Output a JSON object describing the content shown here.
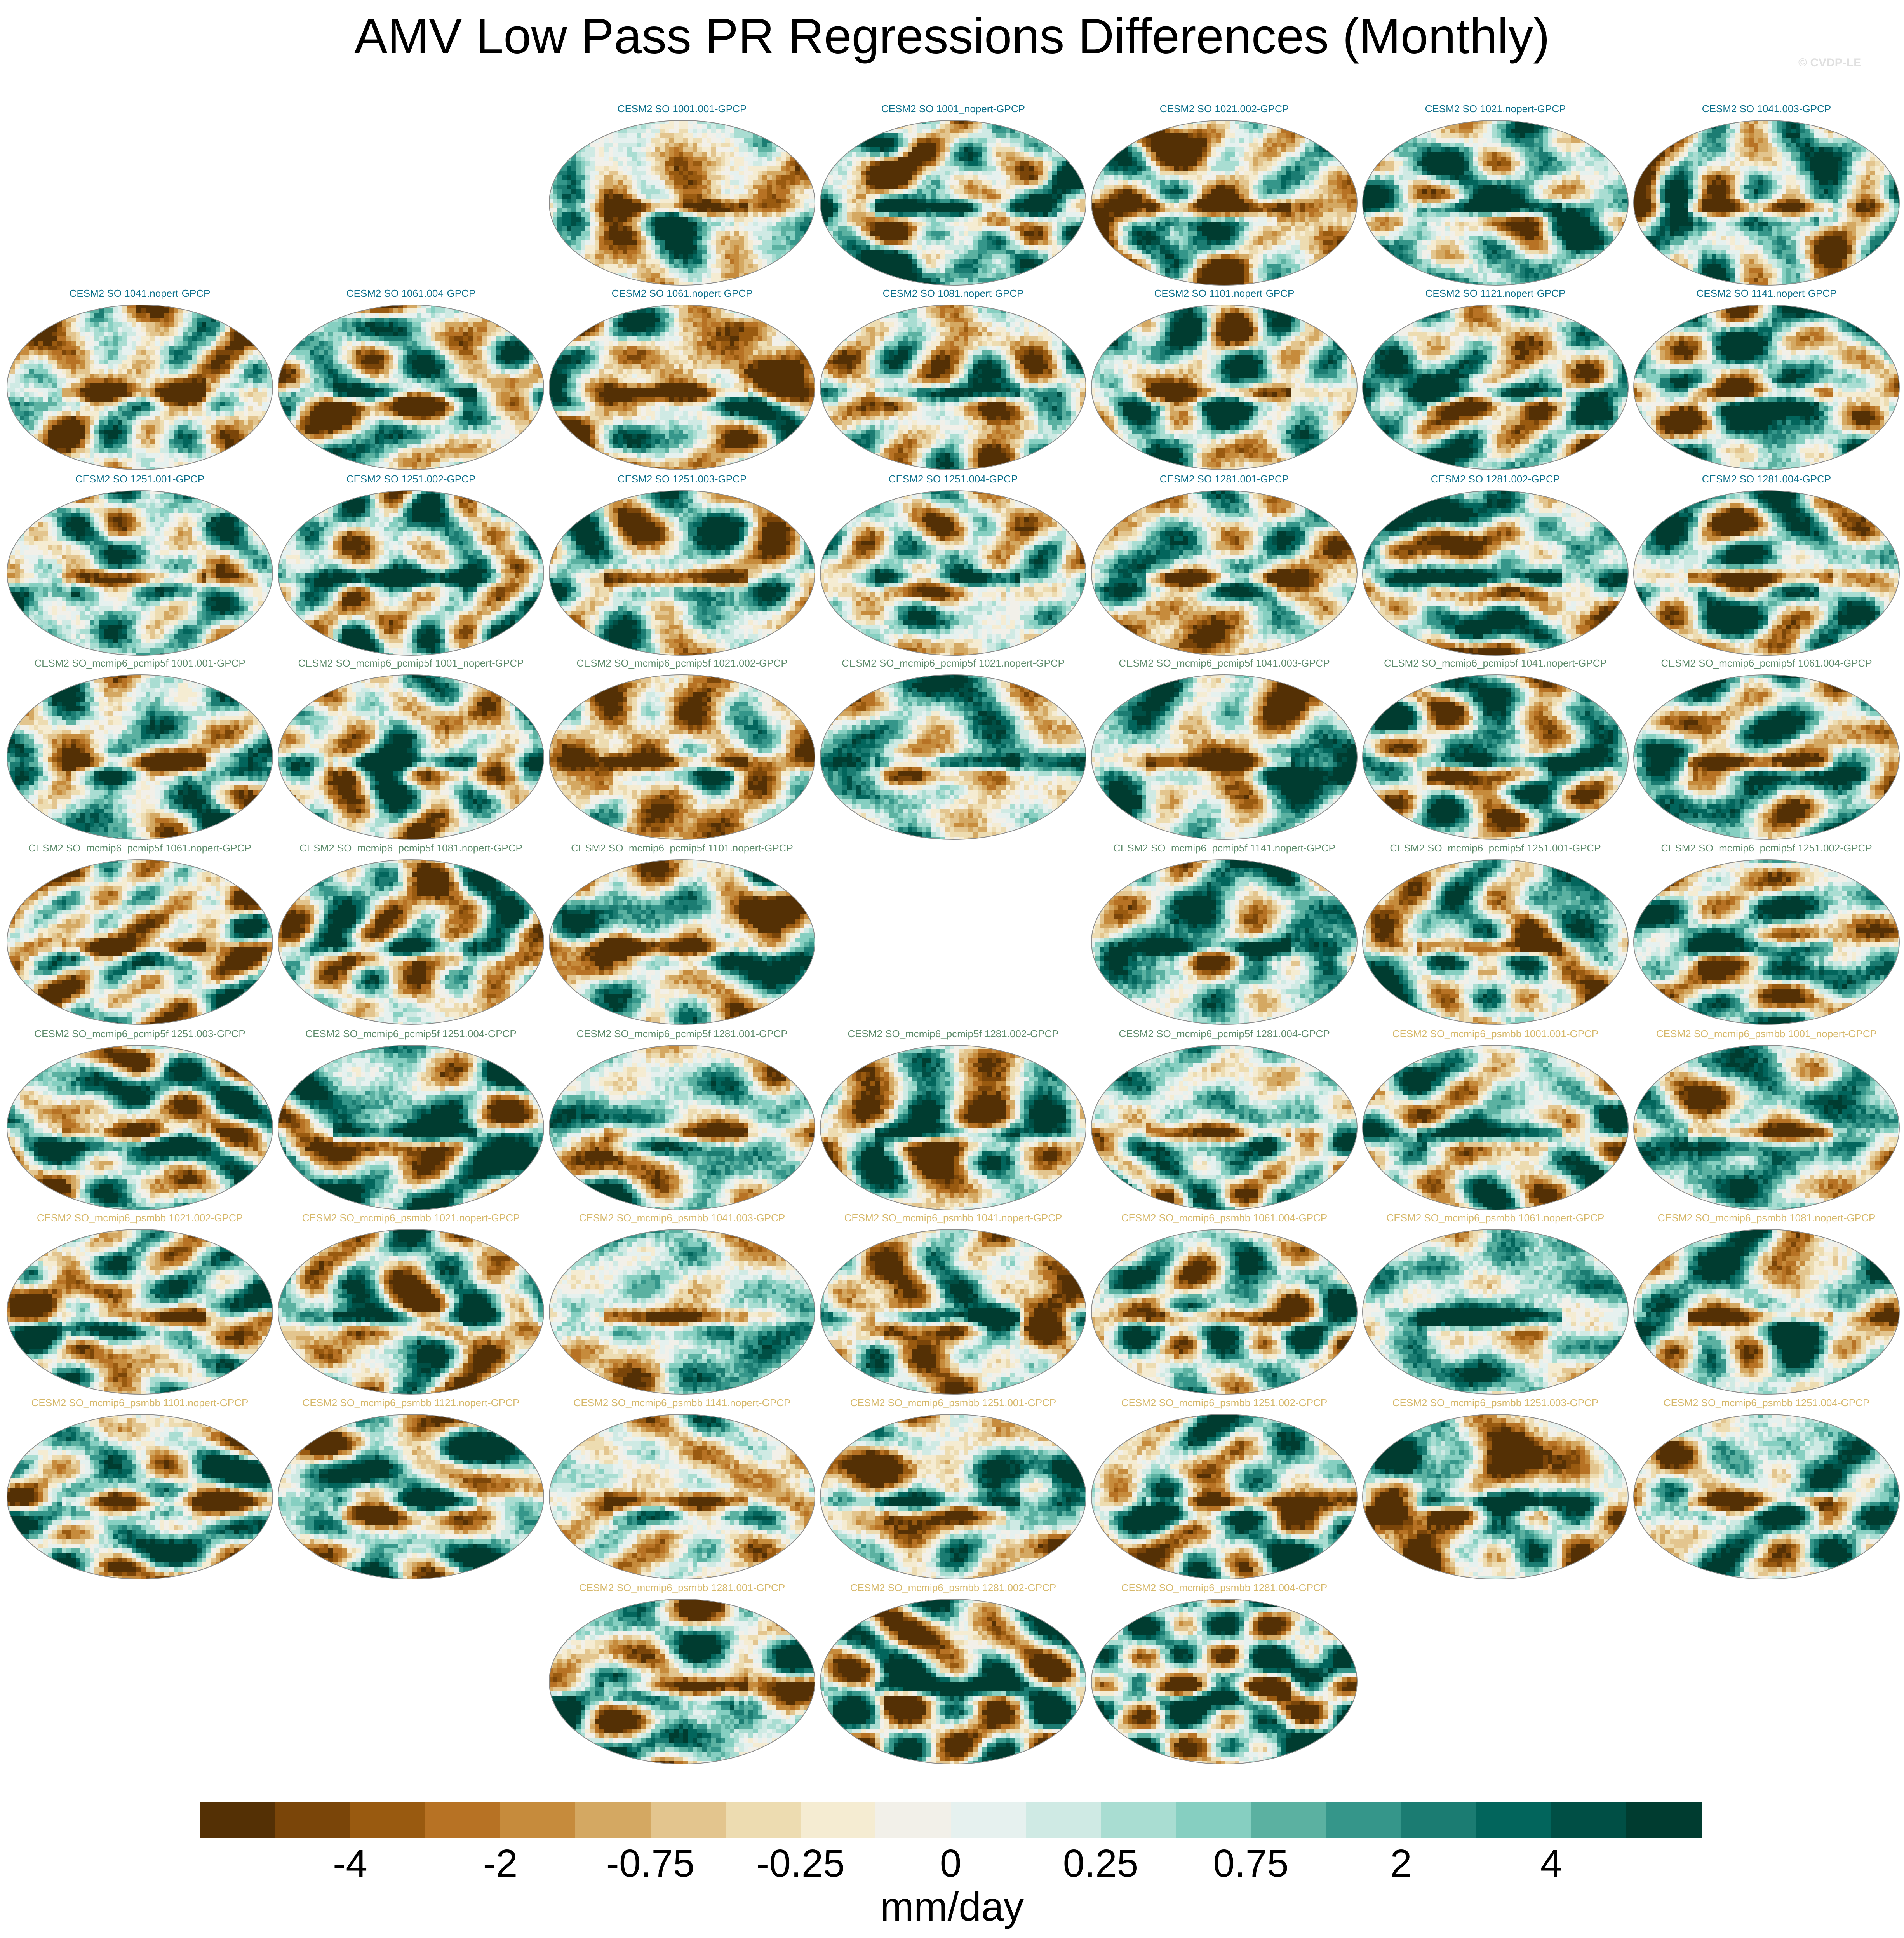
{
  "title": "AMV Low Pass PR Regressions Differences (Monthly)",
  "credit": "© CVDP-LE",
  "colors": {
    "label_so": "#0b6f8a",
    "label_pcmip5f": "#5c8a6a",
    "label_psmbb": "#d6b86a"
  },
  "chart_data": {
    "type": "heatmap",
    "title": "AMV Low Pass PR Regressions Differences (Monthly)",
    "colorbar": {
      "units": "mm/day",
      "tick_labels": [
        "-4",
        "-2",
        "-0.75",
        "-0.25",
        "0",
        "0.25",
        "0.75",
        "2",
        "4"
      ],
      "tick_boundaries": [
        2,
        4,
        6,
        8,
        10,
        12,
        14,
        16,
        18
      ],
      "colors": [
        "#543005",
        "#7a4509",
        "#995a10",
        "#b77224",
        "#c68b3c",
        "#d4a862",
        "#e3c58e",
        "#eddcb1",
        "#f5ecd2",
        "#f2f0e9",
        "#e6f1ef",
        "#cfeae4",
        "#a9ddd2",
        "#86cfc1",
        "#5bb1a1",
        "#35968a",
        "#1b7c72",
        "#02655c",
        "#004f45",
        "#003c30"
      ]
    },
    "panels": [
      {
        "label": "CESM2 SO 1001.001-GPCP",
        "group": "so",
        "slot": 2,
        "row": 0,
        "mean": -0.1,
        "seed": 11
      },
      {
        "label": "CESM2 SO 1001_nopert-GPCP",
        "group": "so",
        "slot": 3,
        "row": 0,
        "mean": 0.2,
        "seed": 12
      },
      {
        "label": "CESM2 SO 1021.002-GPCP",
        "group": "so",
        "slot": 4,
        "row": 0,
        "mean": -0.15,
        "seed": 13
      },
      {
        "label": "CESM2 SO 1021.nopert-GPCP",
        "group": "so",
        "slot": 5,
        "row": 0,
        "mean": 0.25,
        "seed": 14
      },
      {
        "label": "CESM2 SO 1041.003-GPCP",
        "group": "so",
        "slot": 6,
        "row": 0,
        "mean": 0.1,
        "seed": 15
      },
      {
        "label": "CESM2 SO 1041.nopert-GPCP",
        "group": "so",
        "slot": 0,
        "row": 1,
        "mean": -0.2,
        "seed": 21
      },
      {
        "label": "CESM2 SO 1061.004-GPCP",
        "group": "so",
        "slot": 1,
        "row": 1,
        "mean": -0.05,
        "seed": 22
      },
      {
        "label": "CESM2 SO 1061.nopert-GPCP",
        "group": "so",
        "slot": 2,
        "row": 1,
        "mean": -0.25,
        "seed": 23
      },
      {
        "label": "CESM2 SO 1081.nopert-GPCP",
        "group": "so",
        "slot": 3,
        "row": 1,
        "mean": -0.1,
        "seed": 24
      },
      {
        "label": "CESM2 SO 1101.nopert-GPCP",
        "group": "so",
        "slot": 4,
        "row": 1,
        "mean": 0.2,
        "seed": 25
      },
      {
        "label": "CESM2 SO 1121.nopert-GPCP",
        "group": "so",
        "slot": 5,
        "row": 1,
        "mean": 0.15,
        "seed": 26
      },
      {
        "label": "CESM2 SO 1141.nopert-GPCP",
        "group": "so",
        "slot": 6,
        "row": 1,
        "mean": 0.3,
        "seed": 27
      },
      {
        "label": "CESM2 SO 1251.001-GPCP",
        "group": "so",
        "slot": 0,
        "row": 2,
        "mean": 0.2,
        "seed": 31
      },
      {
        "label": "CESM2 SO 1251.002-GPCP",
        "group": "so",
        "slot": 1,
        "row": 2,
        "mean": 0.15,
        "seed": 32
      },
      {
        "label": "CESM2 SO 1251.003-GPCP",
        "group": "so",
        "slot": 2,
        "row": 2,
        "mean": 0.1,
        "seed": 33
      },
      {
        "label": "CESM2 SO 1251.004-GPCP",
        "group": "so",
        "slot": 3,
        "row": 2,
        "mean": -0.05,
        "seed": 34
      },
      {
        "label": "CESM2 SO 1281.001-GPCP",
        "group": "so",
        "slot": 4,
        "row": 2,
        "mean": 0.15,
        "seed": 35
      },
      {
        "label": "CESM2 SO 1281.002-GPCP",
        "group": "so",
        "slot": 5,
        "row": 2,
        "mean": 0.1,
        "seed": 36
      },
      {
        "label": "CESM2 SO 1281.004-GPCP",
        "group": "so",
        "slot": 6,
        "row": 2,
        "mean": 0.2,
        "seed": 37
      },
      {
        "label": "CESM2 SO_mcmip6_pcmip5f 1001.001-GPCP",
        "group": "pcmip5f",
        "slot": 0,
        "row": 3,
        "mean": 0.1,
        "seed": 41
      },
      {
        "label": "CESM2 SO_mcmip6_pcmip5f 1001_nopert-GPCP",
        "group": "pcmip5f",
        "slot": 1,
        "row": 3,
        "mean": 0.05,
        "seed": 42
      },
      {
        "label": "CESM2 SO_mcmip6_pcmip5f 1021.002-GPCP",
        "group": "pcmip5f",
        "slot": 2,
        "row": 3,
        "mean": -0.3,
        "seed": 43
      },
      {
        "label": "CESM2 SO_mcmip6_pcmip5f 1021.nopert-GPCP",
        "group": "pcmip5f",
        "slot": 3,
        "row": 3,
        "mean": 0.1,
        "seed": 44
      },
      {
        "label": "CESM2 SO_mcmip6_pcmip5f 1041.003-GPCP",
        "group": "pcmip5f",
        "slot": 4,
        "row": 3,
        "mean": 0.05,
        "seed": 45
      },
      {
        "label": "CESM2 SO_mcmip6_pcmip5f 1041.nopert-GPCP",
        "group": "pcmip5f",
        "slot": 5,
        "row": 3,
        "mean": 0.1,
        "seed": 46
      },
      {
        "label": "CESM2 SO_mcmip6_pcmip5f 1061.004-GPCP",
        "group": "pcmip5f",
        "slot": 6,
        "row": 3,
        "mean": 0.15,
        "seed": 47
      },
      {
        "label": "CESM2 SO_mcmip6_pcmip5f 1061.nopert-GPCP",
        "group": "pcmip5f",
        "slot": 0,
        "row": 4,
        "mean": -0.15,
        "seed": 51
      },
      {
        "label": "CESM2 SO_mcmip6_pcmip5f 1081.nopert-GPCP",
        "group": "pcmip5f",
        "slot": 1,
        "row": 4,
        "mean": -0.1,
        "seed": 52
      },
      {
        "label": "CESM2 SO_mcmip6_pcmip5f 1101.nopert-GPCP",
        "group": "pcmip5f",
        "slot": 2,
        "row": 4,
        "mean": -0.05,
        "seed": 53
      },
      {
        "label": "CESM2 SO_mcmip6_pcmip5f 1141.nopert-GPCP",
        "group": "pcmip5f",
        "slot": 4,
        "row": 4,
        "mean": 0.3,
        "seed": 54
      },
      {
        "label": "CESM2 SO_mcmip6_pcmip5f 1251.001-GPCP",
        "group": "pcmip5f",
        "slot": 5,
        "row": 4,
        "mean": 0.1,
        "seed": 55
      },
      {
        "label": "CESM2 SO_mcmip6_pcmip5f 1251.002-GPCP",
        "group": "pcmip5f",
        "slot": 6,
        "row": 4,
        "mean": 0.1,
        "seed": 56
      },
      {
        "label": "CESM2 SO_mcmip6_pcmip5f 1251.003-GPCP",
        "group": "pcmip5f",
        "slot": 0,
        "row": 5,
        "mean": 0.2,
        "seed": 61
      },
      {
        "label": "CESM2 SO_mcmip6_pcmip5f 1251.004-GPCP",
        "group": "pcmip5f",
        "slot": 1,
        "row": 5,
        "mean": 0.25,
        "seed": 62
      },
      {
        "label": "CESM2 SO_mcmip6_pcmip5f 1281.001-GPCP",
        "group": "pcmip5f",
        "slot": 2,
        "row": 5,
        "mean": 0.15,
        "seed": 63
      },
      {
        "label": "CESM2 SO_mcmip6_pcmip5f 1281.002-GPCP",
        "group": "pcmip5f",
        "slot": 3,
        "row": 5,
        "mean": -0.1,
        "seed": 64
      },
      {
        "label": "CESM2 SO_mcmip6_pcmip5f 1281.004-GPCP",
        "group": "pcmip5f",
        "slot": 4,
        "row": 5,
        "mean": 0.2,
        "seed": 65
      },
      {
        "label": "CESM2 SO_mcmip6_psmbb 1001.001-GPCP",
        "group": "psmbb",
        "slot": 5,
        "row": 5,
        "mean": 0.1,
        "seed": 66
      },
      {
        "label": "CESM2 SO_mcmip6_psmbb 1001_nopert-GPCP",
        "group": "psmbb",
        "slot": 6,
        "row": 5,
        "mean": 0.25,
        "seed": 67
      },
      {
        "label": "CESM2 SO_mcmip6_psmbb 1021.002-GPCP",
        "group": "psmbb",
        "slot": 0,
        "row": 6,
        "mean": 0.05,
        "seed": 71
      },
      {
        "label": "CESM2 SO_mcmip6_psmbb 1021.nopert-GPCP",
        "group": "psmbb",
        "slot": 1,
        "row": 6,
        "mean": 0.0,
        "seed": 72
      },
      {
        "label": "CESM2 SO_mcmip6_psmbb 1041.003-GPCP",
        "group": "psmbb",
        "slot": 2,
        "row": 6,
        "mean": 0.1,
        "seed": 73
      },
      {
        "label": "CESM2 SO_mcmip6_psmbb 1041.nopert-GPCP",
        "group": "psmbb",
        "slot": 3,
        "row": 6,
        "mean": -0.15,
        "seed": 74
      },
      {
        "label": "CESM2 SO_mcmip6_psmbb 1061.004-GPCP",
        "group": "psmbb",
        "slot": 4,
        "row": 6,
        "mean": 0.15,
        "seed": 75
      },
      {
        "label": "CESM2 SO_mcmip6_psmbb 1061.nopert-GPCP",
        "group": "psmbb",
        "slot": 5,
        "row": 6,
        "mean": 0.3,
        "seed": 76
      },
      {
        "label": "CESM2 SO_mcmip6_psmbb 1081.nopert-GPCP",
        "group": "psmbb",
        "slot": 6,
        "row": 6,
        "mean": 0.2,
        "seed": 77
      },
      {
        "label": "CESM2 SO_mcmip6_psmbb 1101.nopert-GPCP",
        "group": "psmbb",
        "slot": 0,
        "row": 7,
        "mean": 0.15,
        "seed": 81
      },
      {
        "label": "CESM2 SO_mcmip6_psmbb 1121.nopert-GPCP",
        "group": "psmbb",
        "slot": 1,
        "row": 7,
        "mean": 0.1,
        "seed": 82
      },
      {
        "label": "CESM2 SO_mcmip6_psmbb 1141.nopert-GPCP",
        "group": "psmbb",
        "slot": 2,
        "row": 7,
        "mean": -0.1,
        "seed": 83
      },
      {
        "label": "CESM2 SO_mcmip6_psmbb 1251.001-GPCP",
        "group": "psmbb",
        "slot": 3,
        "row": 7,
        "mean": -0.05,
        "seed": 84
      },
      {
        "label": "CESM2 SO_mcmip6_psmbb 1251.002-GPCP",
        "group": "psmbb",
        "slot": 4,
        "row": 7,
        "mean": 0.1,
        "seed": 85
      },
      {
        "label": "CESM2 SO_mcmip6_psmbb 1251.003-GPCP",
        "group": "psmbb",
        "slot": 5,
        "row": 7,
        "mean": -0.15,
        "seed": 86
      },
      {
        "label": "CESM2 SO_mcmip6_psmbb 1251.004-GPCP",
        "group": "psmbb",
        "slot": 6,
        "row": 7,
        "mean": 0.2,
        "seed": 87
      },
      {
        "label": "CESM2 SO_mcmip6_psmbb 1281.001-GPCP",
        "group": "psmbb",
        "slot": 2,
        "row": 8,
        "mean": 0.1,
        "seed": 91
      },
      {
        "label": "CESM2 SO_mcmip6_psmbb 1281.002-GPCP",
        "group": "psmbb",
        "slot": 3,
        "row": 8,
        "mean": 0.05,
        "seed": 92
      },
      {
        "label": "CESM2 SO_mcmip6_psmbb 1281.004-GPCP",
        "group": "psmbb",
        "slot": 4,
        "row": 8,
        "mean": 0.2,
        "seed": 93
      }
    ]
  }
}
